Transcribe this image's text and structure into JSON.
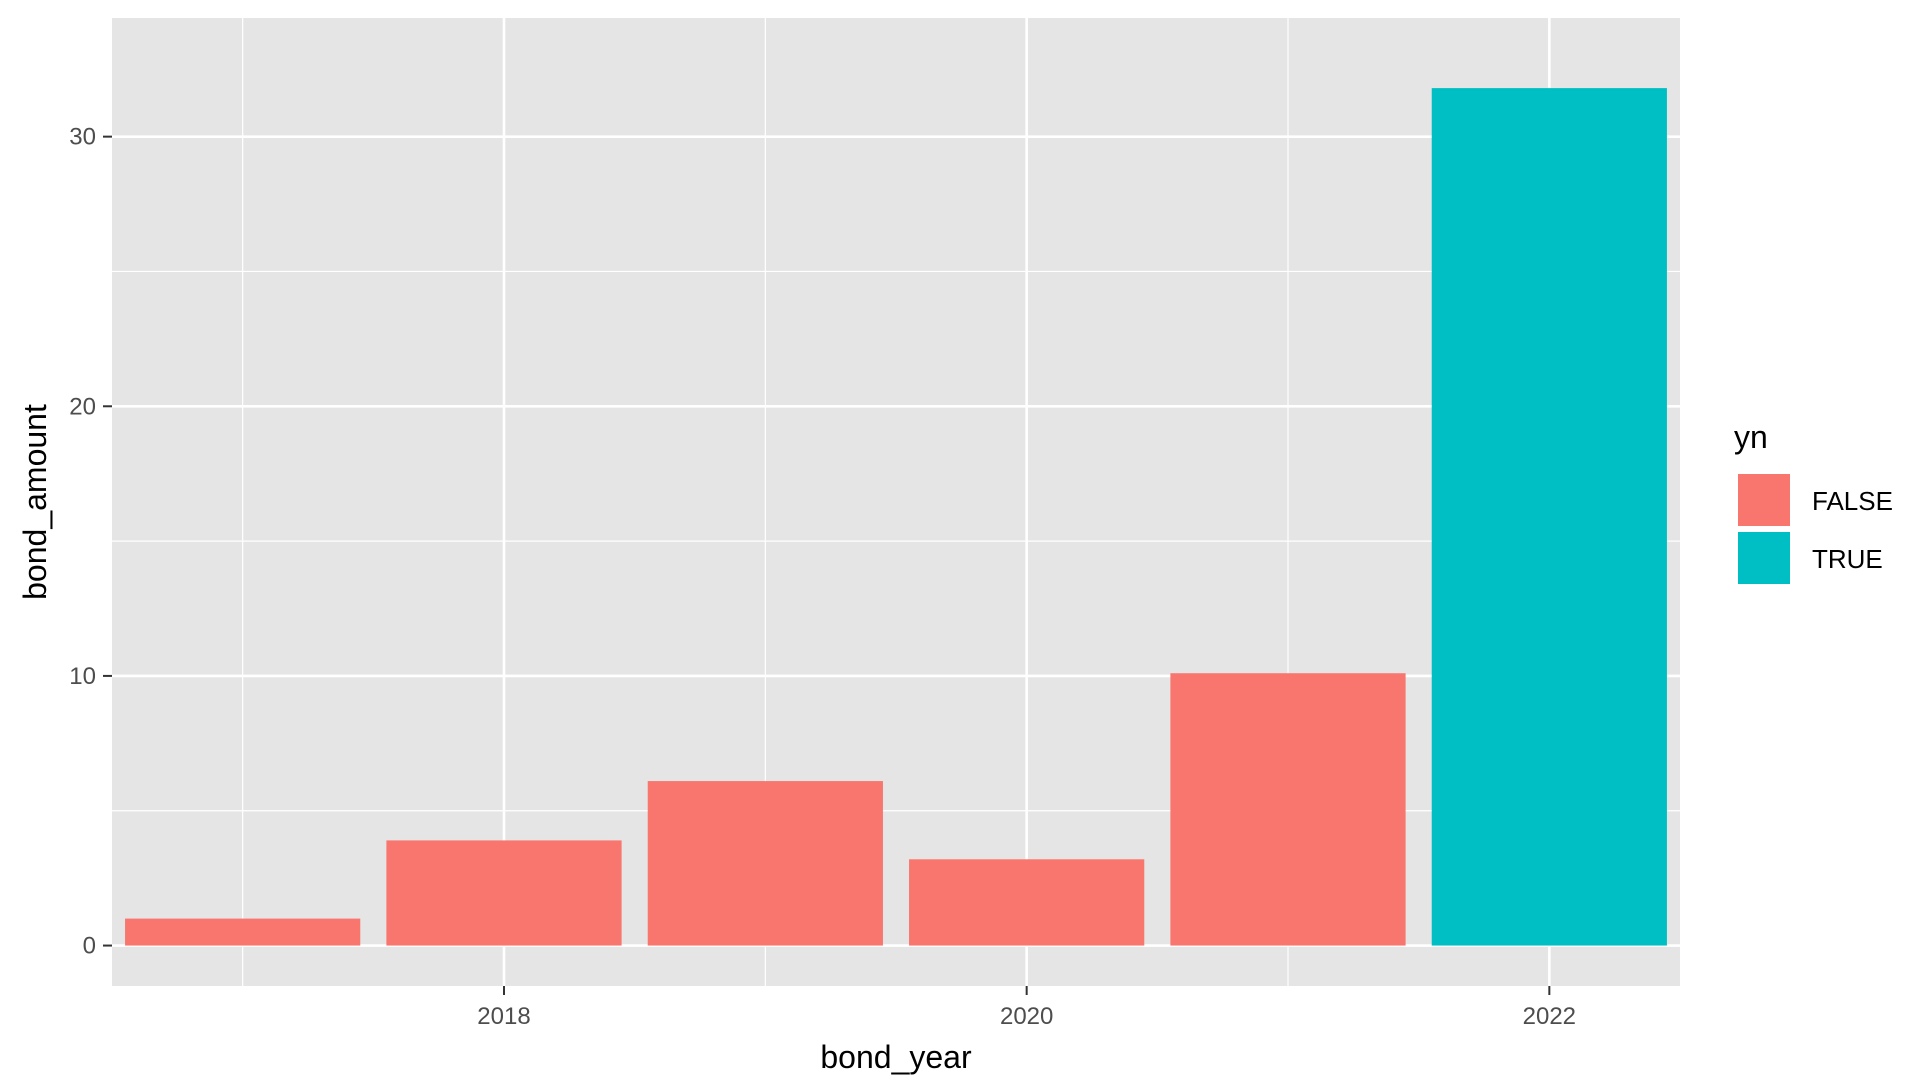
{
  "chart_data": {
    "type": "bar",
    "xlabel": "bond_year",
    "ylabel": "bond_amount",
    "x": [
      2017,
      2018,
      2019,
      2020,
      2021,
      2022
    ],
    "values": [
      1.0,
      3.9,
      6.1,
      3.2,
      10.1,
      31.8
    ],
    "fill_group": [
      "FALSE",
      "FALSE",
      "FALSE",
      "FALSE",
      "FALSE",
      "TRUE"
    ],
    "xlim": [
      2016.5,
      2022.5
    ],
    "ylim": [
      0,
      33
    ],
    "x_ticks": [
      "2018",
      "2020",
      "2022"
    ],
    "y_ticks": [
      "0",
      "10",
      "20",
      "30"
    ],
    "grid": true,
    "panel_background": "#e5e5e5",
    "legend": {
      "title": "yn",
      "placement": "right",
      "entries": [
        {
          "label": "FALSE",
          "color": "#f8766d"
        },
        {
          "label": "TRUE",
          "color": "#00bfc4"
        }
      ]
    }
  }
}
